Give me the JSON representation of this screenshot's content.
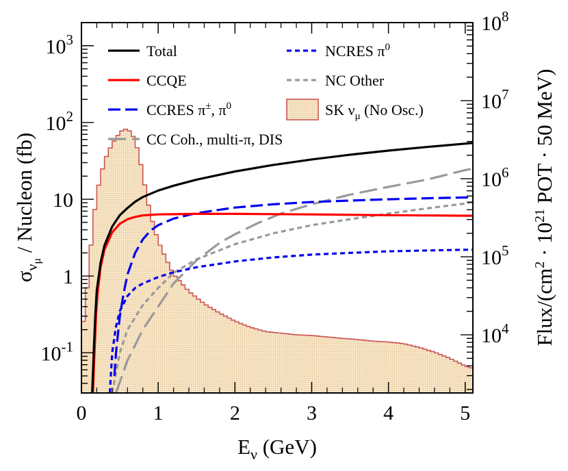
{
  "chart_data": {
    "type": "line",
    "xlabel": "E",
    "xlabel_sub": "ν",
    "xlabel_unit": " (GeV)",
    "ylabel": "σ",
    "ylabel_sub": "ν",
    "ylabel_subsub": "μ",
    "ylabel_unit": " / Nucleon (fb)",
    "y2label_prefix": "Flux/(cm",
    "y2label_exp": "2",
    "y2label_mid": " · 10",
    "y2label_exp2": "21",
    "y2label_suffix": " POT · 50 MeV)",
    "xlim": [
      0,
      5.1
    ],
    "ylim": [
      0.03,
      2000
    ],
    "y2lim": [
      1800,
      100000000
    ],
    "y_scale": "log",
    "y2_scale": "log",
    "x_ticks": [
      {
        "value": 0,
        "label": "0"
      },
      {
        "value": 1,
        "label": "1"
      },
      {
        "value": 2,
        "label": "2"
      },
      {
        "value": 3,
        "label": "3"
      },
      {
        "value": 4,
        "label": "4"
      },
      {
        "value": 5,
        "label": "5"
      }
    ],
    "y_ticks": [
      {
        "value": 0.1,
        "base": "10",
        "exp": "-1"
      },
      {
        "value": 1,
        "base": "1",
        "exp": ""
      },
      {
        "value": 10,
        "base": "10",
        "exp": ""
      },
      {
        "value": 100,
        "base": "10",
        "exp": "2"
      },
      {
        "value": 1000,
        "base": "10",
        "exp": "3"
      }
    ],
    "y2_ticks": [
      {
        "value": 10000,
        "base": "10",
        "exp": "4"
      },
      {
        "value": 100000,
        "base": "10",
        "exp": "5"
      },
      {
        "value": 1000000,
        "base": "10",
        "exp": "6"
      },
      {
        "value": 10000000,
        "base": "10",
        "exp": "7"
      },
      {
        "value": 100000000,
        "base": "10",
        "exp": "8"
      }
    ],
    "series": [
      {
        "name": "Total",
        "color": "#000000",
        "dash": "solid",
        "points": [
          [
            0.14,
            0.03
          ],
          [
            0.16,
            0.1
          ],
          [
            0.18,
            0.3
          ],
          [
            0.2,
            0.65
          ],
          [
            0.25,
            1.5
          ],
          [
            0.3,
            2.5
          ],
          [
            0.4,
            4.4
          ],
          [
            0.5,
            6.2
          ],
          [
            0.6,
            7.7
          ],
          [
            0.7,
            9.3
          ],
          [
            0.8,
            10.7
          ],
          [
            1.0,
            13
          ],
          [
            1.2,
            15
          ],
          [
            1.5,
            18
          ],
          [
            2.0,
            23
          ],
          [
            2.5,
            28
          ],
          [
            3.0,
            33
          ],
          [
            3.5,
            38
          ],
          [
            4.0,
            43
          ],
          [
            4.5,
            48
          ],
          [
            5.0,
            53
          ],
          [
            5.1,
            54
          ]
        ]
      },
      {
        "name": "CCQE",
        "color": "#ff0000",
        "dash": "solid",
        "points": [
          [
            0.15,
            0.03
          ],
          [
            0.17,
            0.1
          ],
          [
            0.19,
            0.3
          ],
          [
            0.21,
            0.6
          ],
          [
            0.25,
            1.3
          ],
          [
            0.3,
            2.2
          ],
          [
            0.4,
            3.7
          ],
          [
            0.5,
            4.8
          ],
          [
            0.6,
            5.5
          ],
          [
            0.7,
            5.9
          ],
          [
            0.8,
            6.15
          ],
          [
            1.0,
            6.35
          ],
          [
            1.5,
            6.45
          ],
          [
            2.0,
            6.45
          ],
          [
            3.0,
            6.35
          ],
          [
            4.0,
            6.2
          ],
          [
            5.0,
            6.1
          ],
          [
            5.1,
            6.1
          ]
        ]
      },
      {
        "name": "CCRES π±, π0",
        "color": "#0000ee",
        "dash": "long",
        "points": [
          [
            0.43,
            0.05
          ],
          [
            0.45,
            0.1
          ],
          [
            0.5,
            0.3
          ],
          [
            0.55,
            0.6
          ],
          [
            0.6,
            1.05
          ],
          [
            0.7,
            2.0
          ],
          [
            0.8,
            3.0
          ],
          [
            0.9,
            3.9
          ],
          [
            1.0,
            4.6
          ],
          [
            1.2,
            5.6
          ],
          [
            1.5,
            6.6
          ],
          [
            2.0,
            7.8
          ],
          [
            2.5,
            8.6
          ],
          [
            3.0,
            9.2
          ],
          [
            3.5,
            9.6
          ],
          [
            4.0,
            10
          ],
          [
            4.5,
            10.3
          ],
          [
            5.1,
            10.6
          ]
        ]
      },
      {
        "name": "CC Coh., multi-π, DIS",
        "color": "#999999",
        "dash": "vlong",
        "points": [
          [
            0.45,
            0.03
          ],
          [
            0.6,
            0.08
          ],
          [
            0.8,
            0.2
          ],
          [
            1.0,
            0.4
          ],
          [
            1.2,
            0.8
          ],
          [
            1.5,
            1.6
          ],
          [
            1.8,
            2.7
          ],
          [
            2.0,
            3.5
          ],
          [
            2.3,
            4.9
          ],
          [
            2.6,
            6.5
          ],
          [
            3.0,
            8.6
          ],
          [
            3.5,
            11.5
          ],
          [
            4.0,
            14.5
          ],
          [
            4.5,
            18
          ],
          [
            5.0,
            24
          ],
          [
            5.1,
            25
          ]
        ]
      },
      {
        "name": "NCRES π0",
        "color": "#0000ee",
        "dash": "short",
        "points": [
          [
            0.37,
            0.03
          ],
          [
            0.4,
            0.1
          ],
          [
            0.45,
            0.22
          ],
          [
            0.5,
            0.35
          ],
          [
            0.6,
            0.55
          ],
          [
            0.7,
            0.7
          ],
          [
            0.8,
            0.8
          ],
          [
            1.0,
            0.97
          ],
          [
            1.2,
            1.12
          ],
          [
            1.5,
            1.3
          ],
          [
            2.0,
            1.55
          ],
          [
            2.5,
            1.75
          ],
          [
            3.0,
            1.9
          ],
          [
            3.5,
            2.0
          ],
          [
            4.0,
            2.1
          ],
          [
            4.5,
            2.15
          ],
          [
            5.0,
            2.2
          ],
          [
            5.1,
            2.2
          ]
        ]
      },
      {
        "name": "NC Other",
        "color": "#999999",
        "dash": "short",
        "points": [
          [
            0.4,
            0.03
          ],
          [
            0.5,
            0.1
          ],
          [
            0.6,
            0.2
          ],
          [
            0.8,
            0.42
          ],
          [
            1.0,
            0.7
          ],
          [
            1.2,
            1.1
          ],
          [
            1.5,
            1.65
          ],
          [
            2.0,
            2.6
          ],
          [
            2.5,
            3.6
          ],
          [
            3.0,
            4.6
          ],
          [
            3.5,
            5.5
          ],
          [
            4.0,
            6.5
          ],
          [
            4.5,
            7.6
          ],
          [
            5.0,
            8.8
          ],
          [
            5.1,
            9.2
          ]
        ]
      }
    ],
    "histogram": {
      "name": "SK ν",
      "name_sub": "μ",
      "name_suffix": " (No Osc.)",
      "fill": "#f5deb8",
      "edge": "#cc5555",
      "axis": "right",
      "bin_width": 0.05,
      "shape_points": [
        [
          0,
          11000
        ],
        [
          0.05,
          20000
        ],
        [
          0.1,
          80000
        ],
        [
          0.15,
          250000
        ],
        [
          0.2,
          650000
        ],
        [
          0.3,
          1700000
        ],
        [
          0.4,
          2800000
        ],
        [
          0.5,
          3900000
        ],
        [
          0.55,
          4300000
        ],
        [
          0.6,
          4300000
        ],
        [
          0.65,
          3900000
        ],
        [
          0.7,
          3100000
        ],
        [
          0.75,
          2000000
        ],
        [
          0.8,
          1150000
        ],
        [
          0.85,
          600000
        ],
        [
          0.9,
          350000
        ],
        [
          0.95,
          230000
        ],
        [
          1.0,
          160000
        ],
        [
          1.1,
          95000
        ],
        [
          1.2,
          60000
        ],
        [
          1.4,
          36000
        ],
        [
          1.6,
          25000
        ],
        [
          1.8,
          19000
        ],
        [
          2.0,
          15000
        ],
        [
          2.2,
          12500
        ],
        [
          2.4,
          11000
        ],
        [
          2.6,
          10500
        ],
        [
          2.8,
          10000
        ],
        [
          3.0,
          9800
        ],
        [
          3.2,
          9400
        ],
        [
          3.4,
          9000
        ],
        [
          3.6,
          8700
        ],
        [
          3.8,
          8300
        ],
        [
          4.0,
          8100
        ],
        [
          4.2,
          7700
        ],
        [
          4.4,
          6900
        ],
        [
          4.6,
          6000
        ],
        [
          4.8,
          5000
        ],
        [
          5.0,
          4000
        ],
        [
          5.1,
          3700
        ]
      ]
    },
    "legend": {
      "placement": "top",
      "columns": 2,
      "left_column": [
        {
          "label": "Total",
          "series": 0
        },
        {
          "label": "CCQE",
          "series": 1
        },
        {
          "label": "CCRES π",
          "sup": "±",
          "label2": ", π",
          "sup2": "0",
          "series": 2
        },
        {
          "label": "CC Coh., multi-π, DIS",
          "series": 3
        }
      ],
      "right_column": [
        {
          "label": "NCRES π",
          "sup": "0",
          "series": 4
        },
        {
          "label": "NC Other",
          "series": 5
        },
        {
          "label": "SK ν",
          "sub": "μ",
          "label2": " (No Osc.)",
          "histogram": true
        }
      ]
    }
  }
}
